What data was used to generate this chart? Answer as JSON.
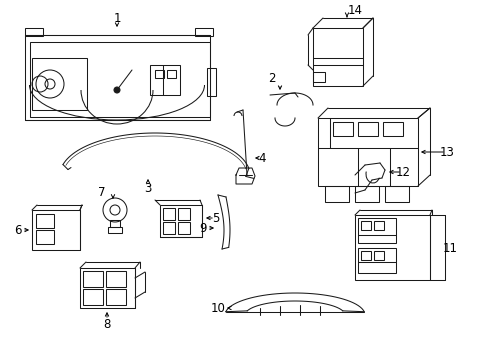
{
  "background_color": "#ffffff",
  "line_color": "#1a1a1a",
  "fig_width": 4.89,
  "fig_height": 3.6,
  "dpi": 100,
  "label_fontsize": 8.5,
  "lw": 0.75
}
